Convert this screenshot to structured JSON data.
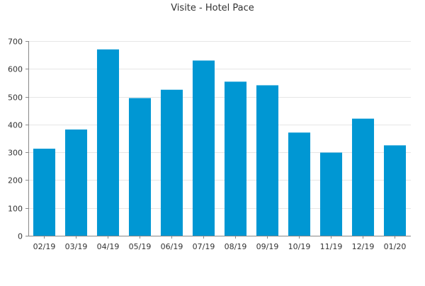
{
  "chart_data": {
    "type": "bar",
    "title": "Visite - Hotel Pace",
    "xlabel": "",
    "ylabel": "",
    "categories": [
      "02/19",
      "03/19",
      "04/19",
      "05/19",
      "06/19",
      "07/19",
      "08/19",
      "09/19",
      "10/19",
      "11/19",
      "12/19",
      "01/20"
    ],
    "values": [
      313,
      382,
      670,
      495,
      525,
      630,
      554,
      541,
      371,
      299,
      421,
      325
    ],
    "ylim": [
      0,
      700
    ],
    "yticks": [
      0,
      100,
      200,
      300,
      400,
      500,
      600,
      700
    ],
    "grid": true,
    "bar_color": "#0097d3",
    "grid_color": "#e6e6e6",
    "axis_color": "#888888",
    "text_color": "#333333"
  }
}
